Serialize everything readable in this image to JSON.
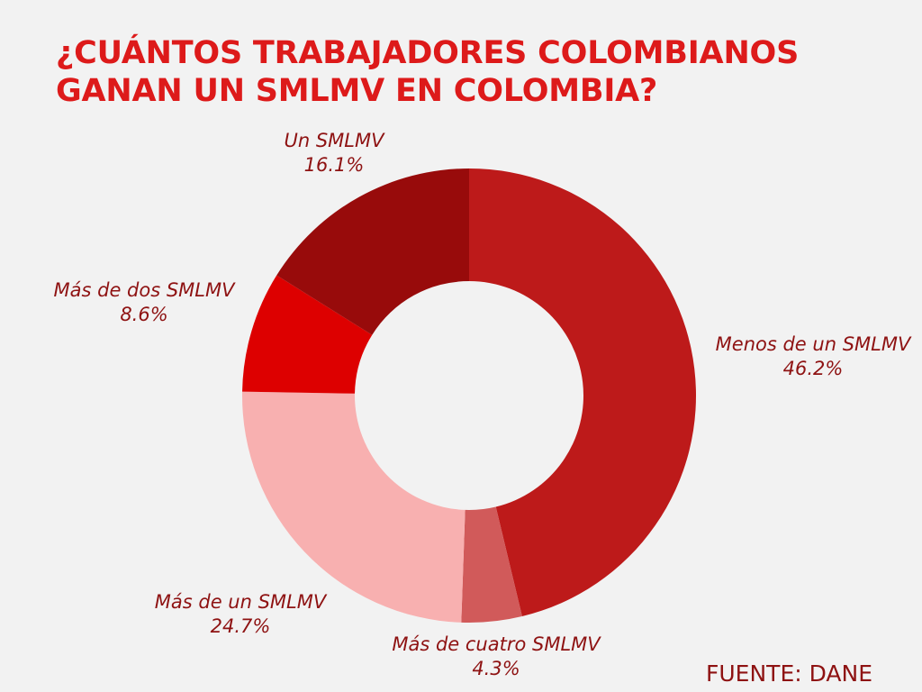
{
  "title": {
    "line1": "¿CUÁNTOS TRABAJADORES COLOMBIANOS",
    "line2": "GANAN UN SMLMV EN COLOMBIA?"
  },
  "source": "FUENTE: DANE",
  "chart_data": {
    "type": "pie",
    "donut": true,
    "title": "¿CUÁNTOS TRABAJADORES COLOMBIANOS GANAN UN SMLMV EN COLOMBIA?",
    "legend": "none",
    "slices": [
      {
        "label": "Menos de un SMLMV",
        "value": 46.2,
        "value_label": "46.2%",
        "color": "#bd1a1a"
      },
      {
        "label": "Más de cuatro SMLMV",
        "value": 4.3,
        "value_label": "4.3%",
        "color": "#d15a5a"
      },
      {
        "label": "Más de un SMLMV",
        "value": 24.7,
        "value_label": "24.7%",
        "color": "#f8b0b0"
      },
      {
        "label": "Más de dos SMLMV",
        "value": 8.6,
        "value_label": "8.6%",
        "color": "#dd0000"
      },
      {
        "label": "Un SMLMV",
        "value": 16.1,
        "value_label": "16.1%",
        "color": "#980b0b"
      }
    ]
  }
}
